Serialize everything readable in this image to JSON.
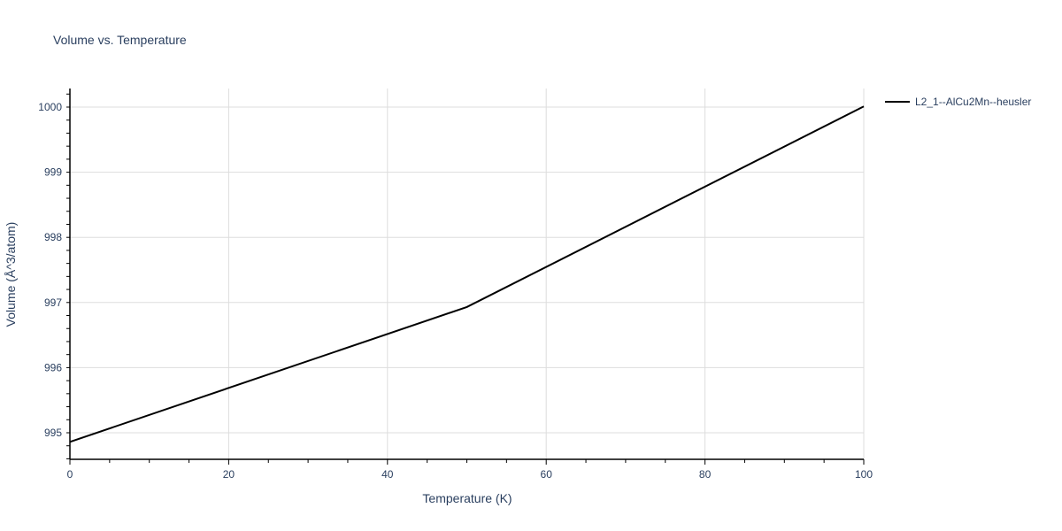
{
  "chart_data": {
    "type": "line",
    "title": "Volume vs. Temperature",
    "xlabel": "Temperature (K)",
    "ylabel": "Volume (Å^3/atom)",
    "xlim": [
      0,
      100
    ],
    "ylim": [
      994.6,
      1000.3
    ],
    "xticks": [
      0,
      20,
      40,
      60,
      80,
      100
    ],
    "yticks": [
      995,
      996,
      997,
      998,
      999,
      1000
    ],
    "grid": true,
    "legend_position": "top-right",
    "series": [
      {
        "name": "L2_1--AlCu2Mn--heusler",
        "color": "#000000",
        "x": [
          0,
          50,
          100
        ],
        "y": [
          994.86,
          996.93,
          1000.01
        ]
      }
    ]
  }
}
